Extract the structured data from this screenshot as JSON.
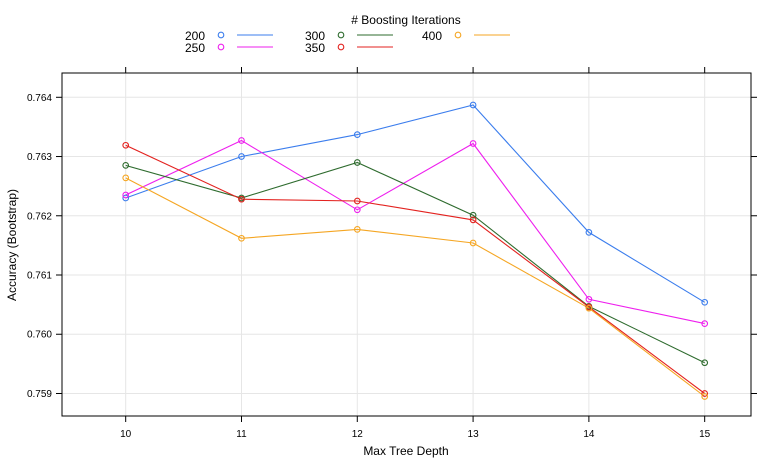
{
  "chart_data": {
    "type": "line",
    "xlabel": "Max Tree Depth",
    "ylabel": "Accuracy (Bootstrap)",
    "legend_title": "# Boosting Iterations",
    "legend_position": "top",
    "grid": true,
    "xlim": [
      9.45,
      15.4
    ],
    "ylim": [
      0.75862,
      0.76441
    ],
    "x": [
      10,
      11,
      12,
      13,
      14,
      15
    ],
    "x_ticks": [
      "10",
      "11",
      "12",
      "13",
      "14",
      "15"
    ],
    "y_ticks": [
      "0.759",
      "0.760",
      "0.761",
      "0.762",
      "0.763",
      "0.764"
    ],
    "series": [
      {
        "name": "200",
        "color": "#3b7ded",
        "values": [
          0.7623,
          0.763,
          0.76337,
          0.76387,
          0.76172,
          0.76054
        ]
      },
      {
        "name": "250",
        "color": "#ee1fee",
        "values": [
          0.76235,
          0.76327,
          0.7621,
          0.76322,
          0.76059,
          0.76018
        ]
      },
      {
        "name": "300",
        "color": "#2e6b2e",
        "values": [
          0.76285,
          0.7623,
          0.7629,
          0.76201,
          0.76047,
          0.75952
        ]
      },
      {
        "name": "350",
        "color": "#e3221f",
        "values": [
          0.76319,
          0.76228,
          0.76225,
          0.76193,
          0.76046,
          0.759
        ]
      },
      {
        "name": "400",
        "color": "#f5a623",
        "values": [
          0.76264,
          0.76162,
          0.76177,
          0.76154,
          0.76044,
          0.75895
        ]
      }
    ]
  }
}
